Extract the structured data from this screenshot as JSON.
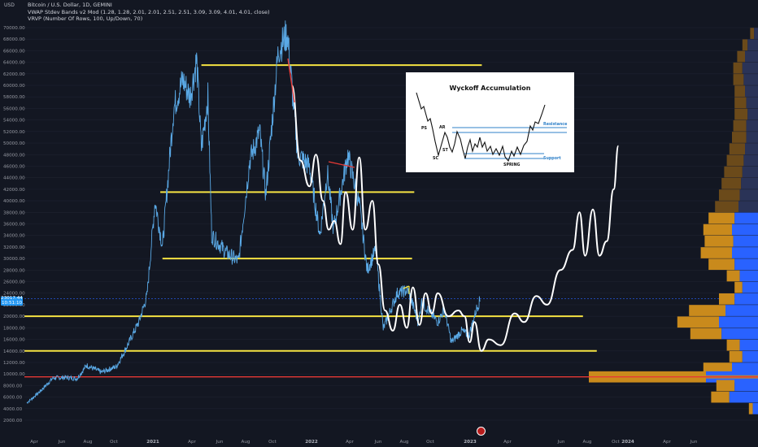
{
  "header": {
    "axis_unit": "USD",
    "title": "Bitcoin / U.S. Dollar, 1D, GEMINI",
    "indicator1": "VWAP Stdev Bands v2 Mod (1.28, 1.28, 2.01, 2.01, 2.51, 2.51, 3.09, 3.09, 4.01, 4.01, close)",
    "indicator2": "VRVP (Number Of Rows, 100, Up/Down, 70)"
  },
  "price_tag": {
    "line1": "23017.44",
    "line2": "10:51:10"
  },
  "inset": {
    "title": "Wyckoff Accumulation",
    "labels": {
      "ps": "PS",
      "ar": "AR",
      "st": "ST",
      "sc": "SC",
      "spring": "SPRING",
      "resistance": "Resistance",
      "support": "Support"
    }
  },
  "colors": {
    "background": "#131722",
    "price": "#5aa9e6",
    "projection": "#ffffff",
    "levels": "#f5e342",
    "red_level": "#e53935",
    "vp_up": "#2962ff",
    "vp_down": "#c98a1c"
  },
  "chart_data": {
    "type": "line",
    "y_axis": {
      "unit": "USD",
      "range": [
        0,
        70000
      ],
      "ticks": [
        2000,
        4000,
        6000,
        8000,
        10000,
        12000,
        14000,
        16000,
        18000,
        20000,
        22000,
        24000,
        26000,
        28000,
        30000,
        32000,
        34000,
        36000,
        38000,
        40000,
        42000,
        44000,
        46000,
        48000,
        50000,
        52000,
        54000,
        56000,
        58000,
        60000,
        62000,
        64000,
        66000,
        68000,
        70000
      ]
    },
    "x_axis": {
      "ticks": [
        "Apr",
        "Jun",
        "Aug",
        "Oct",
        "2021",
        "Apr",
        "Jun",
        "Aug",
        "Oct",
        "2022",
        "Apr",
        "Jun",
        "Aug",
        "Oct",
        "2023",
        "Apr",
        "Jun",
        "Aug",
        "Oct",
        "2024",
        "Apr",
        "Jun"
      ]
    },
    "price_series": {
      "name": "BTCUSD",
      "points": [
        [
          "2020-03-15",
          5000
        ],
        [
          "2020-04-15",
          7000
        ],
        [
          "2020-05-15",
          9300
        ],
        [
          "2020-06-15",
          9400
        ],
        [
          "2020-07-10",
          9200
        ],
        [
          "2020-08-01",
          11500
        ],
        [
          "2020-09-05",
          10300
        ],
        [
          "2020-10-10",
          11300
        ],
        [
          "2020-11-05",
          15000
        ],
        [
          "2020-12-01",
          19000
        ],
        [
          "2020-12-20",
          23500
        ],
        [
          "2021-01-08",
          40000
        ],
        [
          "2021-01-25",
          32000
        ],
        [
          "2021-02-20",
          56000
        ],
        [
          "2021-03-13",
          61000
        ],
        [
          "2021-03-30",
          58000
        ],
        [
          "2021-04-14",
          64500
        ],
        [
          "2021-04-25",
          49000
        ],
        [
          "2021-05-10",
          58000
        ],
        [
          "2021-05-19",
          34000
        ],
        [
          "2021-06-22",
          31000
        ],
        [
          "2021-07-20",
          29500
        ],
        [
          "2021-08-15",
          47000
        ],
        [
          "2021-09-07",
          52000
        ],
        [
          "2021-09-21",
          41000
        ],
        [
          "2021-10-20",
          66000
        ],
        [
          "2021-11-10",
          69000
        ],
        [
          "2021-12-04",
          48000
        ],
        [
          "2021-12-31",
          46000
        ],
        [
          "2022-01-24",
          34000
        ],
        [
          "2022-02-10",
          45000
        ],
        [
          "2022-02-24",
          35000
        ],
        [
          "2022-03-29",
          48000
        ],
        [
          "2022-04-25",
          39000
        ],
        [
          "2022-05-12",
          28000
        ],
        [
          "2022-06-01",
          31500
        ],
        [
          "2022-06-18",
          17800
        ],
        [
          "2022-07-20",
          24000
        ],
        [
          "2022-08-14",
          24500
        ],
        [
          "2022-09-07",
          18800
        ],
        [
          "2022-09-13",
          22500
        ],
        [
          "2022-10-21",
          19000
        ],
        [
          "2022-11-05",
          21300
        ],
        [
          "2022-11-21",
          15500
        ],
        [
          "2022-12-15",
          17500
        ],
        [
          "2022-12-31",
          16600
        ],
        [
          "2023-01-18",
          21300
        ],
        [
          "2023-01-27",
          23017
        ]
      ]
    },
    "projection_series": {
      "name": "projection",
      "points": [
        [
          "2021-11-20",
          60000
        ],
        [
          "2021-12-10",
          47000
        ],
        [
          "2021-12-31",
          42500
        ],
        [
          "2022-01-15",
          48000
        ],
        [
          "2022-01-31",
          40000
        ],
        [
          "2022-02-13",
          35000
        ],
        [
          "2022-02-26",
          36500
        ],
        [
          "2022-03-12",
          32500
        ],
        [
          "2022-03-24",
          41500
        ],
        [
          "2022-04-09",
          35000
        ],
        [
          "2022-04-24",
          47500
        ],
        [
          "2022-05-08",
          35000
        ],
        [
          "2022-05-24",
          40000
        ],
        [
          "2022-06-07",
          29000
        ],
        [
          "2022-06-22",
          21000
        ],
        [
          "2022-07-10",
          17500
        ],
        [
          "2022-07-26",
          22000
        ],
        [
          "2022-08-11",
          18000
        ],
        [
          "2022-08-25",
          25000
        ],
        [
          "2022-09-09",
          18500
        ],
        [
          "2022-09-23",
          24000
        ],
        [
          "2022-10-07",
          20500
        ],
        [
          "2022-10-21",
          24000
        ],
        [
          "2022-11-14",
          20000
        ],
        [
          "2022-12-07",
          21000
        ],
        [
          "2022-12-21",
          20000
        ],
        [
          "2023-01-02",
          15500
        ],
        [
          "2023-01-13",
          19000
        ],
        [
          "2023-01-29",
          14000
        ],
        [
          "2023-02-15",
          16000
        ],
        [
          "2023-03-15",
          15000
        ],
        [
          "2023-04-16",
          20500
        ],
        [
          "2023-05-08",
          19000
        ],
        [
          "2023-06-05",
          23500
        ],
        [
          "2023-06-30",
          22000
        ],
        [
          "2023-07-31",
          28000
        ],
        [
          "2023-08-28",
          31500
        ],
        [
          "2023-09-13",
          38000
        ],
        [
          "2023-09-26",
          30500
        ],
        [
          "2023-10-14",
          38500
        ],
        [
          "2023-10-29",
          30500
        ],
        [
          "2023-11-15",
          33000
        ],
        [
          "2023-12-01",
          42000
        ],
        [
          "2023-12-12",
          49500
        ]
      ]
    },
    "levels": [
      {
        "y": 63500,
        "x_start": "2021-04-25",
        "x_end": "2023-01-30",
        "color": "#f5e342"
      },
      {
        "y": 41500,
        "x_start": "2021-01-20",
        "x_end": "2022-08-28",
        "color": "#f5e342"
      },
      {
        "y": 30000,
        "x_start": "2021-01-25",
        "x_end": "2022-08-23",
        "color": "#f5e342"
      },
      {
        "y": 20000,
        "x_start": "2020-01-01",
        "x_end": "2023-09-21",
        "color": "#f5e342"
      },
      {
        "y": 14000,
        "x_start": "2020-01-01",
        "x_end": "2023-10-23",
        "color": "#f5e342"
      },
      {
        "y": 9500,
        "x_start": "2020-01-01",
        "x_end": "2024-12-31",
        "color": "#e53935"
      }
    ],
    "volume_profile": {
      "type": "bar",
      "rows": [
        {
          "price": 69000,
          "up": 3,
          "down": 3
        },
        {
          "price": 67000,
          "up": 8,
          "down": 4
        },
        {
          "price": 65000,
          "up": 10,
          "down": 6
        },
        {
          "price": 63000,
          "up": 12,
          "down": 7
        },
        {
          "price": 61000,
          "up": 11,
          "down": 8
        },
        {
          "price": 59000,
          "up": 10,
          "down": 8
        },
        {
          "price": 57000,
          "up": 9,
          "down": 9
        },
        {
          "price": 55000,
          "up": 8,
          "down": 10
        },
        {
          "price": 53000,
          "up": 9,
          "down": 10
        },
        {
          "price": 51000,
          "up": 9,
          "down": 11
        },
        {
          "price": 49000,
          "up": 10,
          "down": 12
        },
        {
          "price": 47000,
          "up": 11,
          "down": 13
        },
        {
          "price": 45000,
          "up": 12,
          "down": 14
        },
        {
          "price": 43000,
          "up": 13,
          "down": 15
        },
        {
          "price": 41000,
          "up": 14,
          "down": 16
        },
        {
          "price": 39000,
          "up": 15,
          "down": 18
        },
        {
          "price": 37000,
          "up": 18,
          "down": 20
        },
        {
          "price": 35000,
          "up": 20,
          "down": 22
        },
        {
          "price": 33000,
          "up": 19,
          "down": 22
        },
        {
          "price": 31000,
          "up": 20,
          "down": 24
        },
        {
          "price": 29000,
          "up": 18,
          "down": 20
        },
        {
          "price": 27000,
          "up": 14,
          "down": 10
        },
        {
          "price": 25000,
          "up": 12,
          "down": 6
        },
        {
          "price": 23000,
          "up": 18,
          "down": 12
        },
        {
          "price": 21000,
          "up": 25,
          "down": 28
        },
        {
          "price": 19000,
          "up": 30,
          "down": 32
        },
        {
          "price": 17000,
          "up": 28,
          "down": 24
        },
        {
          "price": 15000,
          "up": 14,
          "down": 10
        },
        {
          "price": 13000,
          "up": 12,
          "down": 10
        },
        {
          "price": 11000,
          "up": 20,
          "down": 22
        },
        {
          "price": 9500,
          "up": 40,
          "down": 90
        },
        {
          "price": 8000,
          "up": 18,
          "down": 14
        },
        {
          "price": 6000,
          "up": 22,
          "down": 14
        },
        {
          "price": 4000,
          "up": 4,
          "down": 3
        }
      ]
    }
  }
}
